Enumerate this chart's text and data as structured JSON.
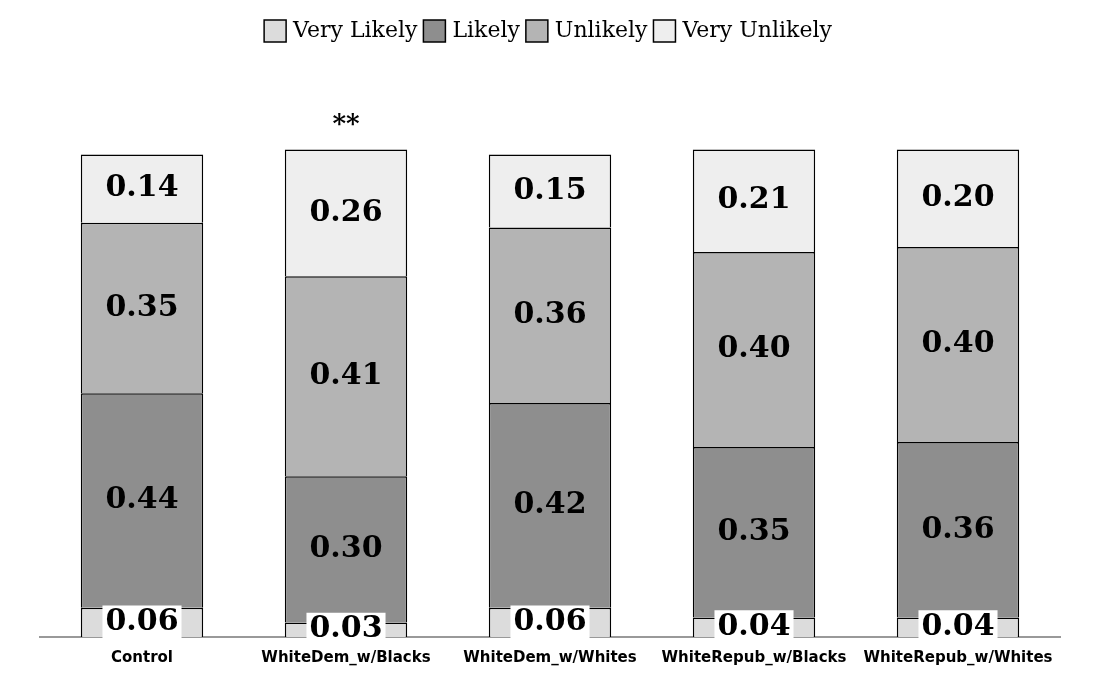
{
  "chart_data": {
    "type": "bar",
    "stacked": true,
    "grid": false,
    "legend": "top",
    "tick_labels": "x",
    "categories": [
      "Control",
      "WhiteDem_w/Blacks",
      "WhiteDem_w/Whites",
      "WhiteRepub_w/Blacks",
      "WhiteRepub_w/Whites"
    ],
    "series": [
      {
        "name": "Very Likely",
        "color": "#dcdcdc",
        "values": [
          0.06,
          0.03,
          0.06,
          0.04,
          0.04
        ],
        "value_labels": [
          "0.06",
          "0.03",
          "0.06",
          "0.04",
          "0.04"
        ]
      },
      {
        "name": "Likely",
        "color": "#8e8e8e",
        "values": [
          0.44,
          0.3,
          0.42,
          0.35,
          0.36
        ],
        "value_labels": [
          "0.44",
          "0.30",
          "0.42",
          "0.35",
          "0.36"
        ]
      },
      {
        "name": "Unlikely",
        "color": "#b4b4b4",
        "values": [
          0.35,
          0.41,
          0.36,
          0.4,
          0.4
        ],
        "value_labels": [
          "0.35",
          "0.41",
          "0.36",
          "0.40",
          "0.40"
        ]
      },
      {
        "name": "Very Unlikely",
        "color": "#eeeeee",
        "values": [
          0.14,
          0.26,
          0.15,
          0.21,
          0.2
        ],
        "value_labels": [
          "0.14",
          "0.26",
          "0.15",
          "0.21",
          "0.20"
        ]
      }
    ],
    "annotations": [
      {
        "text": "**",
        "x": "WhiteDem_w/Blacks",
        "y": 1.0
      }
    ]
  }
}
